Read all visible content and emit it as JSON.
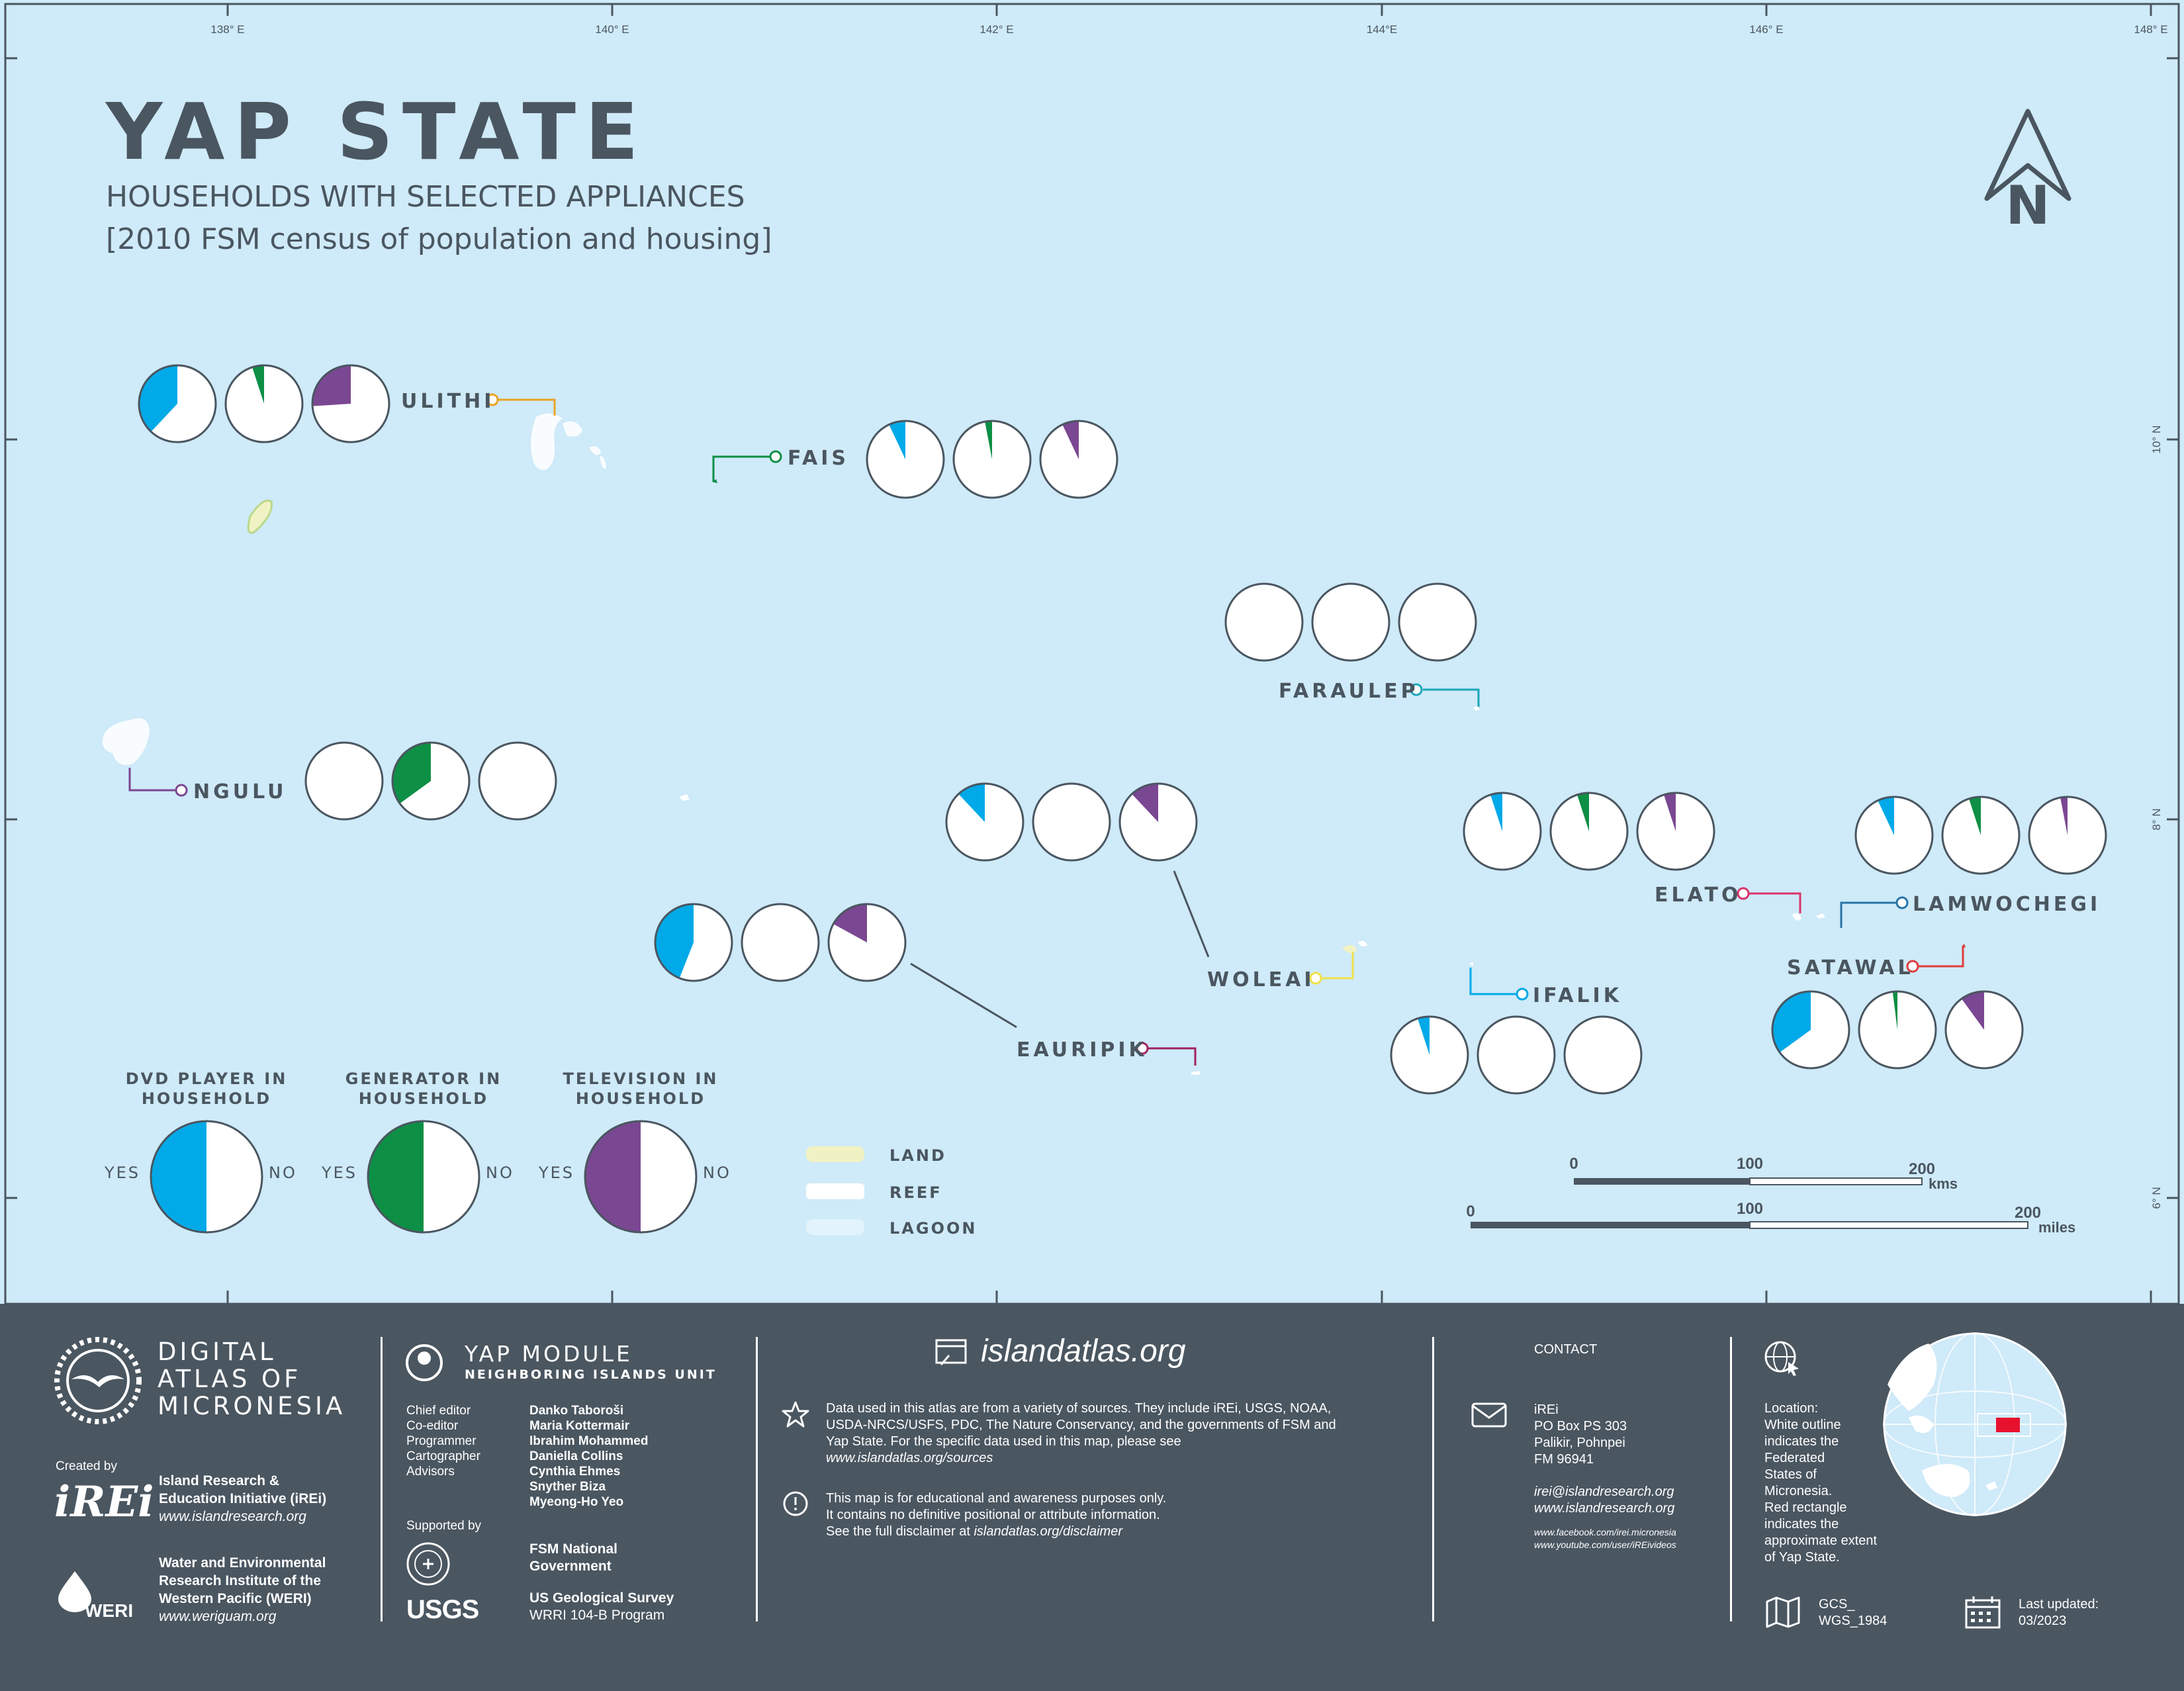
{
  "header": {
    "title": "YAP STATE",
    "subtitle": "HOUSEHOLDS WITH SELECTED APPLIANCES",
    "subtitle2": "[2010 FSM census of population and housing]"
  },
  "graticule": {
    "top_labels": [
      "138° E",
      "140° E",
      "142° E",
      "144°E",
      "146° E",
      "148° E"
    ],
    "right_labels": [
      "10° N",
      "8° N",
      "6° N"
    ]
  },
  "colors": {
    "sea": "#cfeaf8",
    "dvd": "#00a9e8",
    "generator": "#0d8f45",
    "television": "#7a4792",
    "footer": "#4a5660",
    "text": "#4a5660"
  },
  "map_data": {
    "islands": [
      {
        "name": "ULITHI",
        "color": "#e9a423",
        "dvd": 0.38,
        "generator": 0.05,
        "television": 0.26
      },
      {
        "name": "FAIS",
        "color": "#0d8f45",
        "dvd": 0.07,
        "generator": 0.03,
        "television": 0.07
      },
      {
        "name": "FARAULEP",
        "color": "#1aa6b8",
        "dvd": 0.0,
        "generator": 0.0,
        "television": 0.0
      },
      {
        "name": "NGULU",
        "color": "#7a4792",
        "dvd": 0.0,
        "generator": 0.35,
        "television": 0.0
      },
      {
        "name": "WOLEAI",
        "color": "#f0e14a",
        "dvd": 0.12,
        "generator": 0.0,
        "television": 0.12
      },
      {
        "name": "EAURIPIK",
        "color": "#a0235e",
        "dvd": 0.44,
        "generator": 0.0,
        "television": 0.17
      },
      {
        "name": "ELATO",
        "color": "#d8336b",
        "dvd": 0.05,
        "generator": 0.05,
        "television": 0.05
      },
      {
        "name": "LAMWOCHEGI",
        "color": "#2673a8",
        "dvd": 0.07,
        "generator": 0.05,
        "television": 0.03
      },
      {
        "name": "IFALIK",
        "color": "#00a9e8",
        "dvd": 0.05,
        "generator": 0.0,
        "television": 0.0
      },
      {
        "name": "SATAWAL",
        "color": "#e03c3c",
        "dvd": 0.35,
        "generator": 0.02,
        "television": 0.1
      }
    ]
  },
  "legend": {
    "dvd_title_1": "DVD PLAYER IN",
    "dvd_title_2": "HOUSEHOLD",
    "gen_title_1": "GENERATOR IN",
    "gen_title_2": "HOUSEHOLD",
    "tv_title_1": "TELEVISION IN",
    "tv_title_2": "HOUSEHOLD",
    "yes": "YES",
    "no": "NO",
    "land": "LAND",
    "reef": "REEF",
    "lagoon": "LAGOON"
  },
  "scalebars": {
    "kms": {
      "labels": [
        "0",
        "100",
        "200"
      ],
      "unit": "kms"
    },
    "miles": {
      "labels": [
        "0",
        "100",
        "200"
      ],
      "unit": "miles"
    }
  },
  "footer": {
    "atlas_1": "DIGITAL",
    "atlas_2": "ATLAS OF",
    "atlas_3": "MICRONESIA",
    "created_by": "Created by",
    "irei_logo": "iREi",
    "irei_name_1": "Island Research &",
    "irei_name_2": "Education Initiative (iREi)",
    "irei_url": "www.islandresearch.org",
    "weri_name_1": "Water and Environmental",
    "weri_name_2": "Research Institute of the",
    "weri_name_3": "Western Pacific (WERI)",
    "weri_url": "www.weriguam.org",
    "weri_logo": "WERI",
    "module_1": "YAP MODULE",
    "module_2": "NEIGHBORING ISLANDS UNIT",
    "roles": [
      "Chief editor",
      "Co-editor",
      "Programmer",
      "Cartographer",
      "Advisors"
    ],
    "people": [
      "Danko Taboroši",
      "Maria Kottermair",
      "Ibrahim Mohammed",
      "Daniella Collins",
      "Cynthia Ehmes",
      "Snyther Biza",
      "Myeong-Ho Yeo"
    ],
    "supported_by": "Supported by",
    "fsm_1": "FSM National",
    "fsm_2": "Government",
    "usgs_logo": "USGS",
    "usgs_1": "US Geological Survey",
    "usgs_2": "WRRI 104-B Program",
    "site": "islandatlas.org",
    "sources_1": "Data used in this atlas are from a variety of sources. They include iREi, USGS, NOAA,",
    "sources_2": "USDA-NRCS/USFS, PDC, The Nature Conservancy, and the governments of FSM and",
    "sources_3": "Yap State. For the specific data used in this map, please see",
    "sources_4": "www.islandatlas.org/sources",
    "disclaimer_1": "This map is for educational and awareness purposes only.",
    "disclaimer_2": "It contains no definitive positional or attribute information.",
    "disclaimer_3a": "See the full disclaimer at ",
    "disclaimer_3b": "islandatlas.org/disclaimer",
    "contact": "CONTACT",
    "addr": [
      "iREi",
      "PO Box PS 303",
      "Palikir, Pohnpei",
      "FM 96941"
    ],
    "email": "irei@islandresearch.org",
    "web": "www.islandresearch.org",
    "facebook": "www.facebook.com/irei.micronesia",
    "youtube": "www.youtube.com/user/iREivideos",
    "location": [
      "Location:",
      "White outline",
      "indicates the",
      "Federated",
      "States of",
      "Micronesia.",
      "Red rectangle",
      "indicates the",
      "approximate extent",
      "of Yap State."
    ],
    "gcs_1": "GCS_",
    "gcs_2": "WGS_1984",
    "updated_1": "Last updated:",
    "updated_2": "03/2023"
  }
}
